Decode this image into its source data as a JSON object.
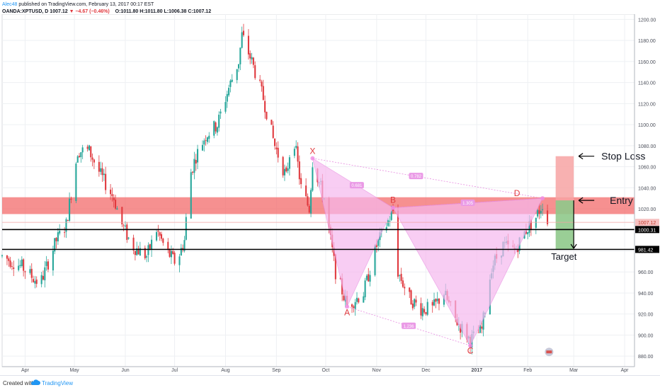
{
  "header": {
    "author": "Alec48",
    "published_text": "published on TradingView.com, February 13, 2017 00:17 EST",
    "symbol": "OANDA:XPTUSD, D",
    "last": "1007.12",
    "change": "▼ −4.67 (−0.46%)",
    "open": "O:1011.80",
    "high": "H:1011.80",
    "low": "L:1006.38",
    "close": "C:1007.12"
  },
  "footer": {
    "created_with": "Created with",
    "brand": "TradingView"
  },
  "colors": {
    "up": "#26a69a",
    "down": "#e0393e",
    "pattern_fill": "#f6b8ee",
    "pattern_line": "#e78be0",
    "zone": "#f36b6b",
    "stop": "#f7a3a3",
    "target": "#8fc98b"
  },
  "chart_data": {
    "type": "candlestick",
    "y_axis": {
      "ticks": [
        880,
        900,
        920,
        940,
        960,
        980,
        1000,
        1020,
        1040,
        1060,
        1080,
        1100,
        1120,
        1140,
        1160,
        1180,
        1200
      ],
      "tick_labels": [
        "880.00",
        "900.00",
        "920.00",
        "940.00",
        "960.00",
        "980.00",
        "1000.00",
        "1020.00",
        "1040.00",
        "1060.00",
        "1080.00",
        "1100.00",
        "1120.00",
        "1140.00",
        "1160.00",
        "1180.00",
        "1200.00"
      ],
      "range": [
        870,
        1205
      ],
      "grid": true
    },
    "x_axis": {
      "ticks": [
        "Apr",
        "May",
        "Jun",
        "Jul",
        "Aug",
        "Sep",
        "Oct",
        "Nov",
        "Dec",
        "2017",
        "Feb",
        "Mar",
        "Apr"
      ],
      "range": [
        "2016-03-18",
        "2017-04-07"
      ]
    },
    "price_labels": [
      {
        "value": 1007.12,
        "text": "1007.12",
        "kind": "last"
      },
      {
        "value": 1000.31,
        "text": "1000.31",
        "kind": "line"
      },
      {
        "value": 981.42,
        "text": "981.42",
        "kind": "line"
      }
    ],
    "horizontal_lines": [
      1000.31,
      981.42
    ],
    "resistance_zone": [
      1015,
      1031
    ],
    "harmonic_pattern": {
      "points": [
        {
          "label": "X",
          "date": "2016-09-23",
          "price": 1068
        },
        {
          "label": "A",
          "date": "2016-10-14",
          "price": 927
        },
        {
          "label": "B",
          "date": "2016-11-11",
          "price": 1021
        },
        {
          "label": "C",
          "date": "2016-12-28",
          "price": 890
        },
        {
          "label": "D",
          "date": "2017-02-10",
          "price": 1030
        }
      ],
      "ratios": [
        "0.681",
        "0.782",
        "1.305",
        "1.236"
      ]
    },
    "trade": {
      "entry": 1028,
      "stop": 1070,
      "target": 981,
      "entry_label": "Entry",
      "stop_label": "Stop Loss",
      "target_label": "Target"
    },
    "series": [
      {
        "name": "XPTUSD",
        "anchors": [
          [
            "2016-03-18",
            975
          ],
          [
            "2016-03-30",
            965
          ],
          [
            "2016-04-10",
            948
          ],
          [
            "2016-04-20",
            990
          ],
          [
            "2016-04-26",
            1005
          ],
          [
            "2016-05-03",
            1075
          ],
          [
            "2016-05-10",
            1075
          ],
          [
            "2016-05-17",
            1052
          ],
          [
            "2016-05-25",
            1030
          ],
          [
            "2016-05-30",
            1005
          ],
          [
            "2016-06-05",
            985
          ],
          [
            "2016-06-14",
            975
          ],
          [
            "2016-06-20",
            1000
          ],
          [
            "2016-06-26",
            980
          ],
          [
            "2016-07-02",
            968
          ],
          [
            "2016-07-07",
            990
          ],
          [
            "2016-07-10",
            1050
          ],
          [
            "2016-07-14",
            1070
          ],
          [
            "2016-07-20",
            1090
          ],
          [
            "2016-07-27",
            1100
          ],
          [
            "2016-08-03",
            1135
          ],
          [
            "2016-08-09",
            1160
          ],
          [
            "2016-08-11",
            1185
          ],
          [
            "2016-08-17",
            1160
          ],
          [
            "2016-08-24",
            1125
          ],
          [
            "2016-08-31",
            1080
          ],
          [
            "2016-09-07",
            1050
          ],
          [
            "2016-09-11",
            1095
          ],
          [
            "2016-09-16",
            1040
          ],
          [
            "2016-09-21",
            1020
          ],
          [
            "2016-09-23",
            1065
          ],
          [
            "2016-09-30",
            1030
          ],
          [
            "2016-10-07",
            960
          ],
          [
            "2016-10-14",
            928
          ],
          [
            "2016-10-24",
            940
          ],
          [
            "2016-11-01",
            985
          ],
          [
            "2016-11-11",
            1018
          ],
          [
            "2016-11-14",
            960
          ],
          [
            "2016-11-21",
            935
          ],
          [
            "2016-11-28",
            925
          ],
          [
            "2016-12-05",
            925
          ],
          [
            "2016-12-12",
            940
          ],
          [
            "2016-12-19",
            915
          ],
          [
            "2016-12-28",
            895
          ],
          [
            "2017-01-04",
            905
          ],
          [
            "2017-01-10",
            965
          ],
          [
            "2017-01-17",
            985
          ],
          [
            "2017-01-24",
            980
          ],
          [
            "2017-01-31",
            1000
          ],
          [
            "2017-02-06",
            1012
          ],
          [
            "2017-02-10",
            1025
          ],
          [
            "2017-02-13",
            1007
          ]
        ]
      }
    ]
  }
}
